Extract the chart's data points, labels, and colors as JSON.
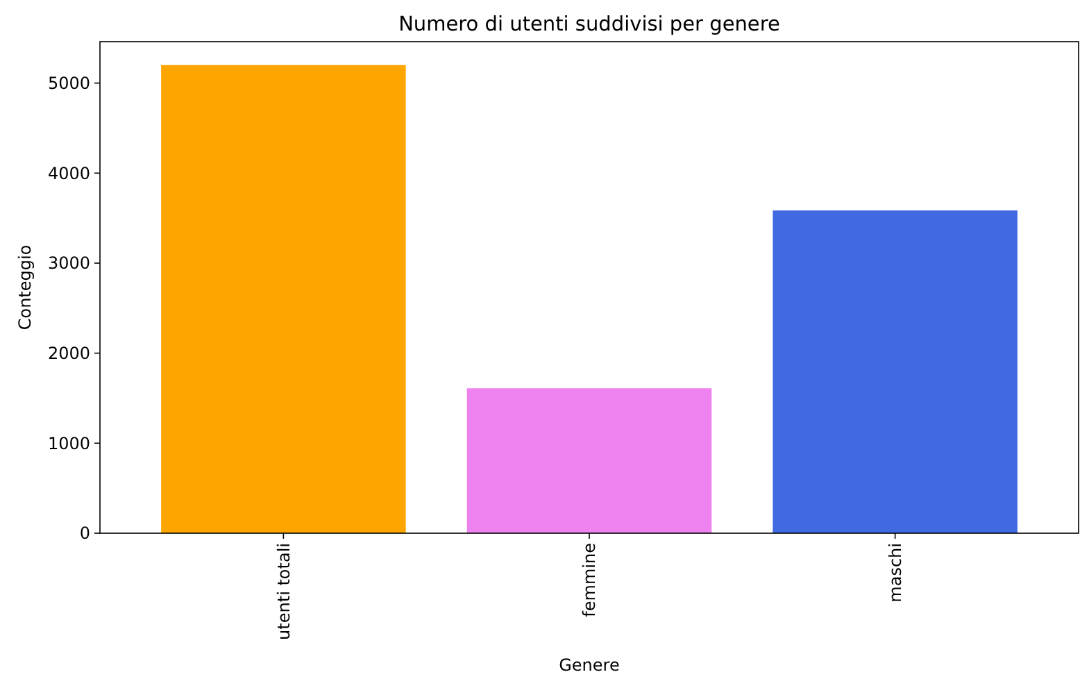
{
  "chart_data": {
    "type": "bar",
    "title": "Numero di utenti suddivisi per genere",
    "xlabel": "Genere",
    "ylabel": "Conteggio",
    "categories": [
      "utenti totali",
      "femmine",
      "maschi"
    ],
    "values": [
      5200,
      1610,
      3585
    ],
    "colors": [
      "#ffa500",
      "#ee82ee",
      "#4169e1"
    ],
    "ylim": [
      0,
      5460
    ],
    "yticks": [
      0,
      1000,
      2000,
      3000,
      4000,
      5000
    ],
    "grid": false
  }
}
